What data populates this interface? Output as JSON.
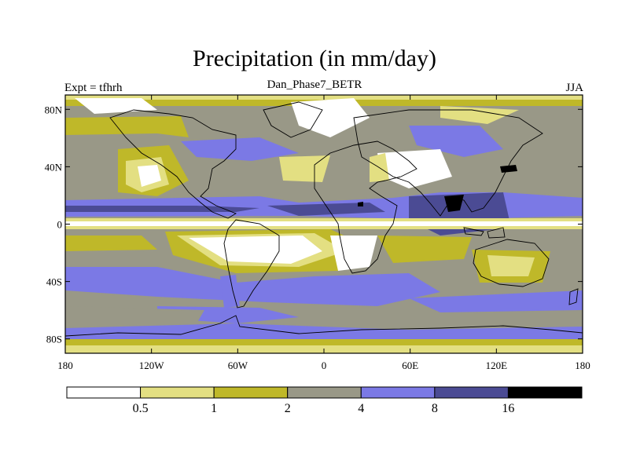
{
  "title": "Precipitation (in mm/day)",
  "subtitle": "Dan_Phase7_BETR",
  "left_label": "Expt = tfhrh",
  "right_label": "JJA",
  "map": {
    "projection": "cylindrical-equidistant",
    "lon_range": [
      -180,
      180
    ],
    "lat_range": [
      -90,
      90
    ],
    "lat_ticks": [
      {
        "value": 80,
        "label": "80N"
      },
      {
        "value": 40,
        "label": "40N"
      },
      {
        "value": 0,
        "label": "0"
      },
      {
        "value": -40,
        "label": "40S"
      },
      {
        "value": -80,
        "label": "80S"
      }
    ],
    "lon_ticks": [
      {
        "value": -180,
        "label": "180"
      },
      {
        "value": -120,
        "label": "120W"
      },
      {
        "value": -60,
        "label": "60W"
      },
      {
        "value": 0,
        "label": "0"
      },
      {
        "value": 60,
        "label": "60E"
      },
      {
        "value": 120,
        "label": "120E"
      },
      {
        "value": 180,
        "label": "180"
      }
    ]
  },
  "colorbar": {
    "colors": [
      "#ffffff",
      "#e3df82",
      "#bfb829",
      "#999887",
      "#7b79e5",
      "#4b4b94",
      "#000000"
    ],
    "labels": [
      "0.5",
      "1",
      "2",
      "4",
      "8",
      "16"
    ]
  }
}
